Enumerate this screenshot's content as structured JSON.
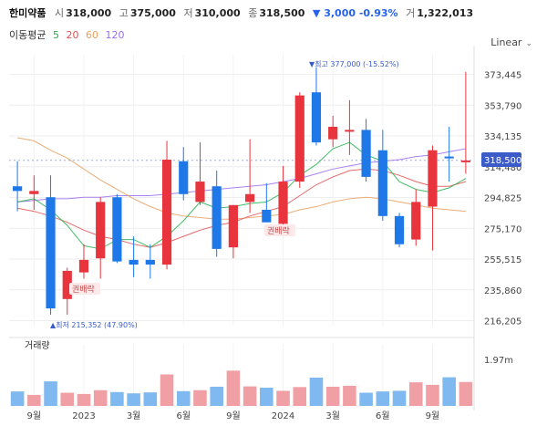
{
  "header": {
    "name": "한미약품",
    "open_label": "시",
    "open": "318,000",
    "high_label": "고",
    "high": "375,000",
    "low_label": "저",
    "low": "310,000",
    "close_label": "종",
    "close": "318,500",
    "change": "▼ 3,000 -0.93%",
    "volume_label": "거",
    "volume": "1,322,013"
  },
  "ma": {
    "title": "이동평균",
    "periods": [
      {
        "label": "5",
        "color": "#22b14c"
      },
      {
        "label": "20",
        "color": "#e05050"
      },
      {
        "label": "60",
        "color": "#e8a060"
      },
      {
        "label": "120",
        "color": "#9b6cf0"
      }
    ]
  },
  "scale_button": "Linear",
  "colors": {
    "up": "#e8343c",
    "down": "#1e78e8",
    "vol_up": "#f0a0a4",
    "vol_down": "#80b8f0",
    "current_tag": "#3b5bc8"
  },
  "annotations": {
    "high": "▼최고 377,000 (-15.52%)",
    "low": "▲최저 215,352 (47.90%)",
    "rights_1": "권배락",
    "rights_2": "권배락"
  },
  "current_price_tag": "318,500",
  "volume_panel": {
    "title": "거래량",
    "max_label": "1.97m"
  },
  "chart_data": {
    "type": "candlestick",
    "scale": "linear",
    "y_ticks": [
      "373,445",
      "353,790",
      "334,135",
      "314,480",
      "294,825",
      "275,170",
      "255,515",
      "235,860",
      "216,205"
    ],
    "y_tick_values": [
      373445,
      353790,
      334135,
      314480,
      294825,
      275170,
      255515,
      235860,
      216205
    ],
    "ylim": [
      213000,
      386000
    ],
    "x_ticks": [
      "9월",
      "2023",
      "3월",
      "6월",
      "9월",
      "2024",
      "3월",
      "6월",
      "9월"
    ],
    "x_tick_index": [
      1.5,
      4.5,
      7.5,
      10.5,
      13.5,
      16.5,
      19.5,
      22.5,
      25.5
    ],
    "candles": [
      {
        "o": 302000,
        "h": 318000,
        "l": 286000,
        "c": 299000
      },
      {
        "o": 297000,
        "h": 309000,
        "l": 287000,
        "c": 299000
      },
      {
        "o": 295000,
        "h": 309000,
        "l": 220000,
        "c": 224000
      },
      {
        "o": 230000,
        "h": 250000,
        "l": 220000,
        "c": 248000
      },
      {
        "o": 247000,
        "h": 265000,
        "l": 243000,
        "c": 255000
      },
      {
        "o": 256000,
        "h": 295000,
        "l": 243000,
        "c": 292000
      },
      {
        "o": 295000,
        "h": 297000,
        "l": 253000,
        "c": 254000
      },
      {
        "o": 255000,
        "h": 270000,
        "l": 244000,
        "c": 252000
      },
      {
        "o": 255000,
        "h": 265000,
        "l": 243000,
        "c": 252000
      },
      {
        "o": 252000,
        "h": 331000,
        "l": 249000,
        "c": 319000
      },
      {
        "o": 318000,
        "h": 327000,
        "l": 293000,
        "c": 297000
      },
      {
        "o": 292000,
        "h": 330000,
        "l": 290000,
        "c": 305000
      },
      {
        "o": 302000,
        "h": 312000,
        "l": 257000,
        "c": 262000
      },
      {
        "o": 263000,
        "h": 290000,
        "l": 256000,
        "c": 290000
      },
      {
        "o": 292000,
        "h": 332000,
        "l": 285000,
        "c": 297000
      },
      {
        "o": 287000,
        "h": 304000,
        "l": 279000,
        "c": 279000
      },
      {
        "o": 278000,
        "h": 315000,
        "l": 276000,
        "c": 305000
      },
      {
        "o": 305000,
        "h": 362000,
        "l": 301000,
        "c": 360000
      },
      {
        "o": 362000,
        "h": 378000,
        "l": 328000,
        "c": 330000
      },
      {
        "o": 332000,
        "h": 347000,
        "l": 327000,
        "c": 340000
      },
      {
        "o": 338000,
        "h": 357000,
        "l": 322000,
        "c": 338000
      },
      {
        "o": 338000,
        "h": 345000,
        "l": 305000,
        "c": 308000
      },
      {
        "o": 325000,
        "h": 338000,
        "l": 280000,
        "c": 283000
      },
      {
        "o": 283000,
        "h": 285000,
        "l": 263000,
        "c": 265000
      },
      {
        "o": 268000,
        "h": 300000,
        "l": 264000,
        "c": 292000
      },
      {
        "o": 289000,
        "h": 328000,
        "l": 261000,
        "c": 325000
      },
      {
        "o": 321000,
        "h": 340000,
        "l": 305000,
        "c": 320000
      },
      {
        "o": 318000,
        "h": 375000,
        "l": 310000,
        "c": 318500
      }
    ],
    "ma5": [
      292000,
      294000,
      287000,
      277000,
      264000,
      262000,
      268000,
      268000,
      263000,
      270000,
      280000,
      292000,
      288000,
      289000,
      291000,
      292000,
      298000,
      309000,
      316000,
      326000,
      330000,
      322000,
      318000,
      305000,
      300000,
      298000,
      301000,
      307000
    ],
    "ma20": [
      288000,
      286000,
      283000,
      279000,
      274000,
      270000,
      268000,
      265000,
      263000,
      266000,
      270000,
      274000,
      277000,
      279000,
      283000,
      286000,
      289000,
      296000,
      303000,
      308000,
      312000,
      313000,
      312000,
      309000,
      305000,
      302000,
      302000,
      305000
    ],
    "ma60": [
      333000,
      331000,
      325000,
      320000,
      313000,
      306000,
      300000,
      294000,
      289000,
      285000,
      283000,
      282000,
      281000,
      281000,
      282000,
      283000,
      284000,
      287000,
      289000,
      292000,
      294000,
      295000,
      294000,
      292000,
      290000,
      288000,
      287000,
      286000
    ],
    "ma120": [
      292000,
      293000,
      294000,
      294000,
      295000,
      295000,
      296000,
      296000,
      296000,
      297000,
      298000,
      299000,
      300000,
      301000,
      302000,
      303000,
      305000,
      307000,
      310000,
      313000,
      315000,
      317000,
      318000,
      319000,
      321000,
      322000,
      324000,
      326000
    ],
    "volume": [
      0.46,
      0.35,
      0.78,
      0.42,
      0.38,
      0.5,
      0.44,
      0.4,
      0.43,
      1.0,
      0.47,
      0.5,
      0.61,
      1.12,
      0.62,
      0.58,
      0.48,
      0.6,
      0.9,
      0.61,
      0.64,
      0.42,
      0.46,
      0.48,
      0.75,
      0.67,
      0.91,
      0.76
    ],
    "volume_unit": "m",
    "volume_ylim": [
      0,
      1.97
    ]
  }
}
